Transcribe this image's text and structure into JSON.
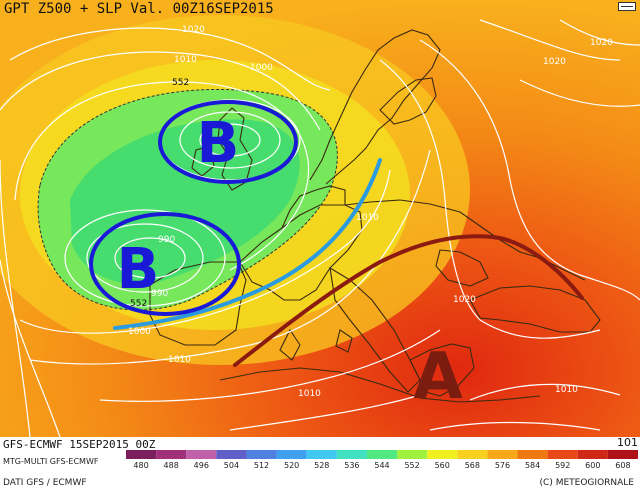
{
  "title": "GPT Z500 + SLP Val. 00Z16SEP2015",
  "model_run": "GFS-ECMWF 15SEP2015 00Z",
  "model_line": "MTG-MULTI GFS-ECMWF",
  "data_credit": "DATI GFS / ECMWF",
  "copyright": "(C) METEOGIORNALE",
  "corner_value": "101",
  "legend_values": [
    "480",
    "488",
    "496",
    "504",
    "512",
    "520",
    "528",
    "536",
    "544",
    "552",
    "560",
    "568",
    "576",
    "584",
    "592",
    "600",
    "608"
  ],
  "legend_colors": [
    "#7b1f5c",
    "#a0307a",
    "#c060a8",
    "#6060c8",
    "#5080e0",
    "#40a0f0",
    "#40c8f0",
    "#40e0c0",
    "#50e880",
    "#a0f040",
    "#f0f020",
    "#f8d020",
    "#f8a818",
    "#f07810",
    "#e84818",
    "#d02818",
    "#b01018"
  ],
  "pressure_labels": [
    "1020",
    "1010",
    "1000",
    "1020",
    "1020",
    "1010",
    "990",
    "990",
    "1010",
    "1020",
    "1000",
    "1010",
    "1010",
    "552",
    "552"
  ],
  "systems": [
    {
      "letter": "B",
      "color": "#1a1ad6"
    },
    {
      "letter": "B",
      "color": "#1a1ad6"
    },
    {
      "letter": "A",
      "color": "#7a1c10"
    }
  ]
}
